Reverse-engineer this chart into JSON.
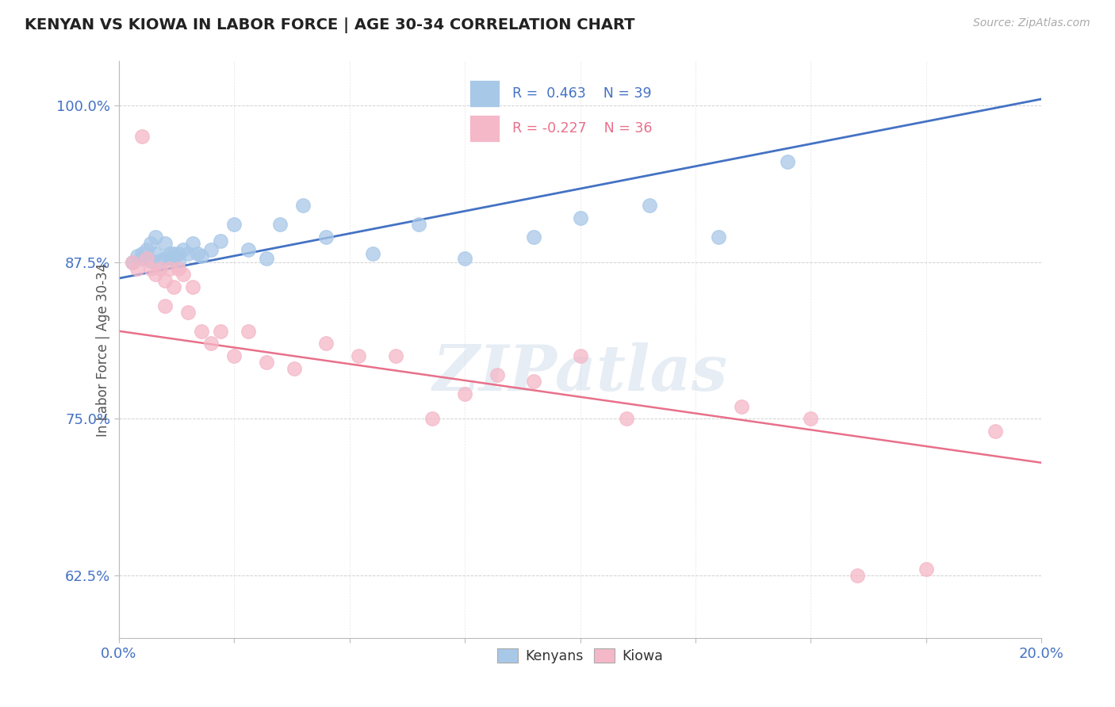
{
  "title": "KENYAN VS KIOWA IN LABOR FORCE | AGE 30-34 CORRELATION CHART",
  "source_text": "Source: ZipAtlas.com",
  "ylabel": "In Labor Force | Age 30-34",
  "xlim": [
    0.0,
    0.2
  ],
  "ylim": [
    0.575,
    1.035
  ],
  "yticks": [
    0.625,
    0.75,
    0.875,
    1.0
  ],
  "ytick_labels": [
    "62.5%",
    "75.0%",
    "87.5%",
    "100.0%"
  ],
  "kenyan_color": "#a8c8e8",
  "kiowa_color": "#f4b8c8",
  "kenyan_line_color": "#4472c4",
  "kiowa_line_color": "#e8708a",
  "kenyan_R": 0.463,
  "kenyan_N": 39,
  "kiowa_R": -0.227,
  "kiowa_N": 36,
  "legend_text_color_blue": "#4472c4",
  "legend_text_color_pink": "#e8708a",
  "background_color": "#ffffff",
  "watermark": "ZIPatlas",
  "kenyan_x": [
    0.003,
    0.004,
    0.005,
    0.005,
    0.006,
    0.007,
    0.007,
    0.008,
    0.008,
    0.009,
    0.01,
    0.01,
    0.011,
    0.011,
    0.012,
    0.012,
    0.013,
    0.013,
    0.014,
    0.015,
    0.016,
    0.017,
    0.018,
    0.02,
    0.022,
    0.025,
    0.028,
    0.032,
    0.035,
    0.04,
    0.045,
    0.055,
    0.065,
    0.075,
    0.09,
    0.1,
    0.115,
    0.13,
    0.145
  ],
  "kenyan_y": [
    0.875,
    0.88,
    0.878,
    0.882,
    0.885,
    0.876,
    0.89,
    0.882,
    0.895,
    0.876,
    0.878,
    0.89,
    0.878,
    0.882,
    0.882,
    0.878,
    0.882,
    0.876,
    0.885,
    0.882,
    0.89,
    0.882,
    0.88,
    0.885,
    0.892,
    0.905,
    0.885,
    0.878,
    0.905,
    0.92,
    0.895,
    0.882,
    0.905,
    0.878,
    0.895,
    0.91,
    0.92,
    0.895,
    0.955
  ],
  "kiowa_x": [
    0.003,
    0.004,
    0.005,
    0.006,
    0.007,
    0.008,
    0.009,
    0.01,
    0.01,
    0.011,
    0.012,
    0.013,
    0.014,
    0.015,
    0.016,
    0.018,
    0.02,
    0.022,
    0.025,
    0.028,
    0.032,
    0.038,
    0.045,
    0.052,
    0.06,
    0.068,
    0.075,
    0.082,
    0.09,
    0.1,
    0.11,
    0.135,
    0.15,
    0.16,
    0.175,
    0.19
  ],
  "kiowa_y": [
    0.875,
    0.87,
    0.975,
    0.878,
    0.87,
    0.865,
    0.87,
    0.86,
    0.84,
    0.87,
    0.855,
    0.87,
    0.865,
    0.835,
    0.855,
    0.82,
    0.81,
    0.82,
    0.8,
    0.82,
    0.795,
    0.79,
    0.81,
    0.8,
    0.8,
    0.75,
    0.77,
    0.785,
    0.78,
    0.8,
    0.75,
    0.76,
    0.75,
    0.625,
    0.63,
    0.74
  ]
}
